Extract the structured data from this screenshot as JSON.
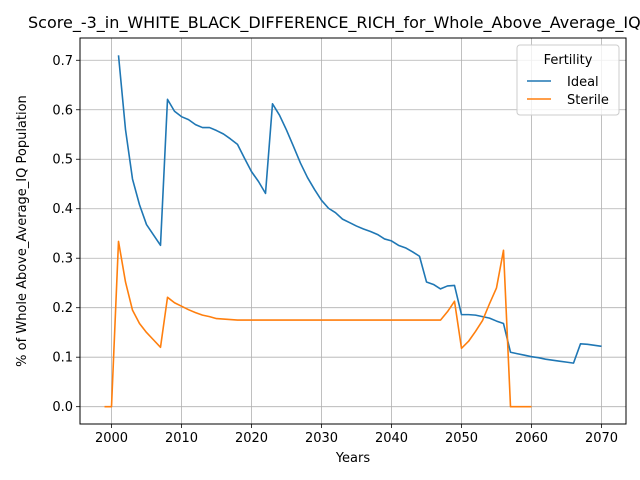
{
  "chart_data": {
    "type": "line",
    "title": "Score_-3_in_WHITE_BLACK_DIFFERENCE_RICH_for_Whole_Above_Average_IQ",
    "xlabel": "Years",
    "ylabel": "% of Whole Above_Average_IQ Population",
    "xlim": [
      1995.5,
      2073.5
    ],
    "ylim": [
      -0.035,
      0.745
    ],
    "xticks": [
      2000,
      2010,
      2020,
      2030,
      2040,
      2050,
      2060,
      2070
    ],
    "yticks": [
      0.0,
      0.1,
      0.2,
      0.3,
      0.4,
      0.5,
      0.6,
      0.7
    ],
    "grid": true,
    "legend": {
      "title": "Fertility",
      "position": "top-right"
    },
    "series": [
      {
        "name": "Ideal",
        "color": "#1f77b4",
        "x": [
          2001,
          2002,
          2003,
          2004,
          2005,
          2006,
          2007,
          2008,
          2009,
          2010,
          2011,
          2012,
          2013,
          2014,
          2015,
          2016,
          2017,
          2018,
          2019,
          2020,
          2021,
          2022,
          2023,
          2024,
          2025,
          2026,
          2027,
          2028,
          2029,
          2030,
          2031,
          2032,
          2033,
          2034,
          2035,
          2036,
          2037,
          2038,
          2039,
          2040,
          2041,
          2042,
          2043,
          2044,
          2045,
          2046,
          2047,
          2048,
          2049,
          2050,
          2051,
          2052,
          2053,
          2054,
          2055,
          2056,
          2057,
          2058,
          2059,
          2060,
          2061,
          2062,
          2063,
          2064,
          2065,
          2066,
          2067,
          2068,
          2069,
          2070
        ],
        "values": [
          0.71,
          0.56,
          0.46,
          0.408,
          0.368,
          0.347,
          0.326,
          0.621,
          0.597,
          0.586,
          0.58,
          0.57,
          0.564,
          0.564,
          0.558,
          0.551,
          0.541,
          0.53,
          0.502,
          0.475,
          0.455,
          0.431,
          0.612,
          0.589,
          0.559,
          0.526,
          0.492,
          0.463,
          0.439,
          0.417,
          0.401,
          0.392,
          0.379,
          0.372,
          0.365,
          0.359,
          0.354,
          0.348,
          0.339,
          0.335,
          0.326,
          0.321,
          0.313,
          0.304,
          0.252,
          0.247,
          0.238,
          0.244,
          0.245,
          0.186,
          0.186,
          0.185,
          0.182,
          0.179,
          0.173,
          0.168,
          0.11,
          0.107,
          0.104,
          0.101,
          0.099,
          0.096,
          0.094,
          0.092,
          0.09,
          0.088,
          0.127,
          0.126,
          0.124,
          0.122
        ]
      },
      {
        "name": "Sterile",
        "color": "#ff7f0e",
        "x": [
          1999,
          2000,
          2001,
          2002,
          2003,
          2004,
          2005,
          2006,
          2007,
          2008,
          2009,
          2010,
          2011,
          2012,
          2013,
          2014,
          2015,
          2016,
          2017,
          2018,
          2019,
          2020,
          2025,
          2030,
          2035,
          2040,
          2045,
          2047,
          2048,
          2049,
          2050,
          2051,
          2052,
          2053,
          2054,
          2055,
          2056,
          2057,
          2058,
          2059,
          2060
        ],
        "values": [
          0.0,
          0.0,
          0.334,
          0.252,
          0.195,
          0.168,
          0.15,
          0.135,
          0.12,
          0.221,
          0.21,
          0.203,
          0.196,
          0.19,
          0.185,
          0.182,
          0.178,
          0.177,
          0.176,
          0.175,
          0.175,
          0.175,
          0.175,
          0.175,
          0.175,
          0.175,
          0.175,
          0.175,
          0.192,
          0.213,
          0.118,
          0.132,
          0.152,
          0.174,
          0.208,
          0.24,
          0.316,
          0.0,
          0.0,
          0.0,
          0.0
        ]
      }
    ]
  }
}
